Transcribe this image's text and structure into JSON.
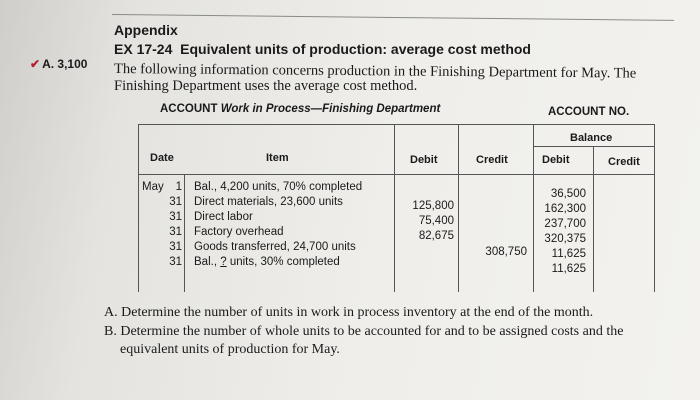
{
  "appendix": "Appendix",
  "exercise": {
    "number": "EX 17-24",
    "title": "Equivalent units of production: average cost method"
  },
  "answer_hint": {
    "label": "A. 3,100"
  },
  "intro": {
    "line1": "The following information concerns production in the Finishing Department for May. The",
    "line2": "Finishing Department uses the average cost method."
  },
  "account": {
    "prefix": "ACCOUNT",
    "name": "Work in Process—Finishing Department",
    "number_label": "ACCOUNT NO.",
    "headers": {
      "date": "Date",
      "item": "Item",
      "debit": "Debit",
      "credit": "Credit",
      "balance": "Balance",
      "bal_debit": "Debit",
      "bal_credit": "Credit"
    },
    "month": "May",
    "rows": [
      {
        "day": "1",
        "item": "Bal., 4,200 units, 70% completed",
        "debit": "",
        "credit": "",
        "balance": "36,500"
      },
      {
        "day": "31",
        "item": "Direct materials, 23,600 units",
        "debit": "125,800",
        "credit": "",
        "balance": "162,300"
      },
      {
        "day": "31",
        "item": "Direct labor",
        "debit": "75,400",
        "credit": "",
        "balance": "237,700"
      },
      {
        "day": "31",
        "item": "Factory overhead",
        "debit": "82,675",
        "credit": "",
        "balance": "320,375"
      },
      {
        "day": "31",
        "item": "Goods transferred, 24,700 units",
        "debit": "",
        "credit": "308,750",
        "balance": "11,625"
      },
      {
        "day": "31",
        "item_pre": "Bal., ",
        "item_blank": "?",
        "item_post": " units, 30% completed",
        "debit": "",
        "credit": "",
        "balance": "11,625"
      }
    ]
  },
  "questions": [
    {
      "label": "A.",
      "text": "Determine the number of units in work in process inventory at the end of the month."
    },
    {
      "label": "B.",
      "line1": "Determine the number of whole units to be accounted for and to be assigned costs and the",
      "line2": "equivalent units of production for May."
    }
  ]
}
